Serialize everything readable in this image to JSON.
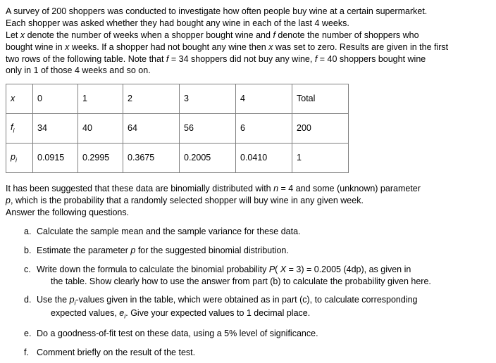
{
  "intro": {
    "line1": "A survey of 200 shoppers was conducted to investigate how often people buy wine at a certain supermarket.",
    "line2": "Each shopper was asked whether they had bought any wine in each of the last 4 weeks.",
    "line3a": "Let ",
    "line3_x": "x",
    "line3b": " denote the number of weeks when a shopper bought wine and ",
    "line3_f": "f",
    "line3c": " denote the number of shoppers who",
    "line4a": "bought wine in ",
    "line4_x": "x",
    "line4b": " weeks. If a shopper had not bought any wine then ",
    "line4_x2": "x",
    "line4c": " was set to zero. Results are given in the first",
    "line5a": "two rows of the following table. Note that ",
    "line5_f": "f",
    "line5b": " = 34 shoppers did not buy any wine, ",
    "line5_f2": "f",
    "line5c": " = 40 shoppers bought wine",
    "line6": "only in 1 of those 4 weeks and so on."
  },
  "table": {
    "r1": {
      "hdr": "x",
      "c0": "0",
      "c1": "1",
      "c2": "2",
      "c3": "3",
      "c4": "4",
      "tot": "Total"
    },
    "r2": {
      "hdr_f": "f",
      "hdr_i": "i",
      "c0": "34",
      "c1": "40",
      "c2": "64",
      "c3": "56",
      "c4": "6",
      "tot": "200"
    },
    "r3": {
      "hdr_p": "p",
      "hdr_i": "i",
      "c0": "0.0915",
      "c1": "0.2995",
      "c2": "0.3675",
      "c3": "0.2005",
      "c4": "0.0410",
      "tot": "1"
    }
  },
  "mid": {
    "line1a": "It has been suggested that these data are binomially distributed with ",
    "line1_n": "n",
    "line1b": " = 4 and some (unknown) parameter",
    "line2_p": "p",
    "line2a": ", which is the probability that a randomly selected shopper will buy wine in any given week.",
    "line3": "Answer the following questions."
  },
  "q": {
    "a": {
      "lbl": "a.",
      "txt": "Calculate the sample mean and the sample variance for these data."
    },
    "b": {
      "lbl": "b.",
      "txt1": "Estimate the parameter ",
      "p": "p",
      "txt2": " for the suggested binomial distribution."
    },
    "c": {
      "lbl": "c.",
      "txt1": "Write down the formula to calculate the binomial probability ",
      "px": "P",
      "txt1b": "( ",
      "x": "X",
      "txt2": " = 3) = 0.2005 (4dp), as given in",
      "txt3": "the table. Show clearly how to use the answer from part (b) to calculate the probability given here."
    },
    "d": {
      "lbl": "d.",
      "txt1": "Use the ",
      "p": "p",
      "i": "i",
      "txt2": "-values given in the table, which were obtained as in part (c), to calculate corresponding",
      "txt3": "expected values, ",
      "e": "e",
      "i2": "i",
      "txt4": ". Give your expected values to 1 decimal place."
    },
    "e": {
      "lbl": "e.",
      "txt": "Do a goodness-of-fit test on these data, using a 5% level of significance."
    },
    "f": {
      "lbl": "f.",
      "txt": "Comment briefly on the result of the test."
    }
  }
}
